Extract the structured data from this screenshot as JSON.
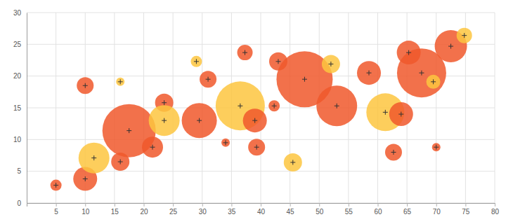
{
  "chart_data": {
    "type": "bubble",
    "marker": "cross",
    "grid": true,
    "xlim": [
      0,
      80
    ],
    "ylim": [
      0,
      30
    ],
    "xticks": [
      5,
      10,
      15,
      20,
      25,
      30,
      35,
      40,
      45,
      50,
      55,
      60,
      65,
      70,
      75,
      80
    ],
    "yticks": [
      0,
      5,
      10,
      15,
      20,
      25,
      30
    ],
    "x": [
      5,
      10,
      10,
      11.5,
      16,
      16,
      17.5,
      21.5,
      23.5,
      23.5,
      29,
      29.5,
      31,
      34,
      36.5,
      37.3,
      39,
      39.3,
      42.3,
      43,
      45.5,
      47.5,
      52,
      53,
      58.5,
      61.3,
      62.7,
      64,
      65.3,
      67.5,
      69.5,
      70,
      72.5,
      74.8
    ],
    "values": [
      2.8,
      3.8,
      18.5,
      7.1,
      6.5,
      19.1,
      11.4,
      8.8,
      15.8,
      13,
      22.3,
      13,
      19.5,
      9.5,
      15.3,
      23.7,
      13,
      8.8,
      15.3,
      22.3,
      6.4,
      19.5,
      21.9,
      15.3,
      20.5,
      14.3,
      8,
      14,
      23.7,
      20.5,
      19.1,
      8.8,
      24.7,
      26.4
    ],
    "size": [
      64,
      289,
      144,
      484,
      169,
      36,
      1444,
      225,
      169,
      484,
      64,
      625,
      144,
      36,
      1225,
      121,
      289,
      144,
      64,
      169,
      169,
      1600,
      169,
      841,
      289,
      729,
      144,
      289,
      289,
      1225,
      100,
      36,
      529,
      121
    ],
    "colors": [
      "#f0582b",
      "#f0582b",
      "#f0582b",
      "#fdc63f",
      "#f0582b",
      "#fdc63f",
      "#f0582b",
      "#f0582b",
      "#f0582b",
      "#fdc63f",
      "#fdc63f",
      "#f0582b",
      "#f0582b",
      "#f0582b",
      "#fdc63f",
      "#f0582b",
      "#f0582b",
      "#f0582b",
      "#f0582b",
      "#f0582b",
      "#fdc63f",
      "#f0582b",
      "#fdc63f",
      "#f0582b",
      "#f0582b",
      "#fdc63f",
      "#f0582b",
      "#f0582b",
      "#f0582b",
      "#f0582b",
      "#fdc63f",
      "#f0582b",
      "#f0582b",
      "#fdc63f"
    ]
  }
}
